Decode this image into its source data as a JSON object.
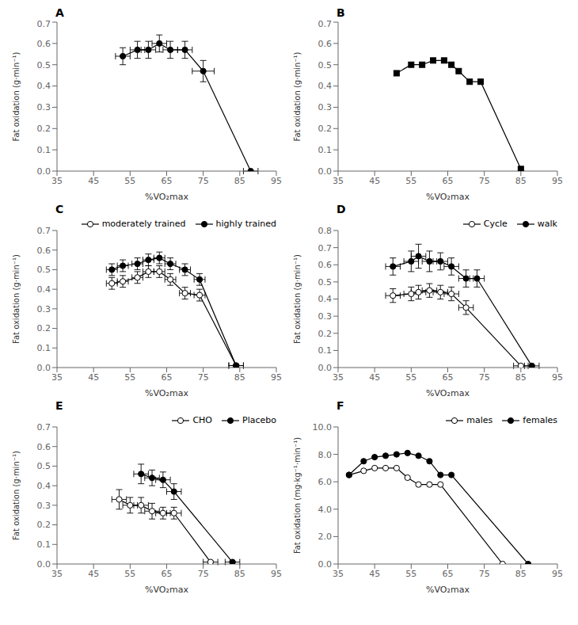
{
  "chart_data": [
    {
      "type": "line",
      "title": "A",
      "xlabel": "%VO₂max",
      "ylabel": "Fat oxidation (g·min⁻¹)",
      "xlim": [
        35,
        95
      ],
      "ylim": [
        0,
        0.7
      ],
      "xticks": [
        35,
        45,
        55,
        65,
        75,
        85,
        95
      ],
      "yticks": [
        {
          "value": 0,
          "label": "0.0"
        },
        0.1,
        0.2,
        0.3,
        0.4,
        0.5,
        0.6,
        0.7
      ],
      "grid": false,
      "series": [
        {
          "x": [
            53,
            57,
            60,
            63,
            66,
            70,
            75,
            88
          ],
          "values": [
            0.54,
            0.57,
            0.57,
            0.6,
            0.57,
            0.57,
            0.47,
            0.0
          ],
          "xerr": [
            2,
            2,
            2,
            2,
            2,
            2,
            3,
            2
          ],
          "yerr": [
            0.04,
            0.04,
            0.04,
            0.04,
            0.04,
            0.04,
            0.05,
            0.0
          ],
          "marker": "circle",
          "color": "#000000"
        }
      ]
    },
    {
      "type": "line",
      "title": "B",
      "xlabel": "%VO₂max",
      "ylabel": "Fat oxidation (g·min⁻¹)",
      "xlim": [
        35,
        95
      ],
      "ylim": [
        0,
        0.7
      ],
      "xticks": [
        35,
        45,
        55,
        65,
        75,
        85,
        95
      ],
      "yticks": [
        {
          "value": 0,
          "label": "0.0"
        },
        0.1,
        0.2,
        0.3,
        0.4,
        0.5,
        0.6,
        0.7
      ],
      "grid": false,
      "series": [
        {
          "x": [
            51,
            55,
            58,
            61,
            64,
            66,
            68,
            71,
            74,
            85
          ],
          "values": [
            0.46,
            0.5,
            0.5,
            0.52,
            0.52,
            0.5,
            0.47,
            0.42,
            0.42,
            0.01
          ],
          "marker": "square",
          "color": "#000000"
        }
      ]
    },
    {
      "type": "line",
      "title": "C",
      "xlabel": "%VO₂max",
      "ylabel": "Fat oxidation (g·min⁻¹)",
      "xlim": [
        35,
        95
      ],
      "ylim": [
        0,
        0.7
      ],
      "xticks": [
        35,
        45,
        55,
        65,
        75,
        85,
        95
      ],
      "yticks": [
        {
          "value": 0,
          "label": "0.0"
        },
        0.1,
        0.2,
        0.3,
        0.4,
        0.5,
        0.6,
        0.7
      ],
      "grid": false,
      "legend": "upper right",
      "series": [
        {
          "name": "moderately trained",
          "x": [
            50,
            53,
            57,
            60,
            63,
            66,
            70,
            74,
            84
          ],
          "values": [
            0.43,
            0.44,
            0.46,
            0.49,
            0.49,
            0.45,
            0.38,
            0.37,
            0.01
          ],
          "xerr": [
            1.5,
            1.5,
            1.5,
            1.5,
            1.5,
            1.5,
            1.5,
            1.5,
            2
          ],
          "yerr": [
            0.03,
            0.03,
            0.03,
            0.03,
            0.03,
            0.03,
            0.03,
            0.03,
            0.005
          ],
          "marker": "open_circle",
          "color": "#000000"
        },
        {
          "name": "highly trained",
          "x": [
            50,
            53,
            57,
            60,
            63,
            66,
            70,
            74,
            84
          ],
          "values": [
            0.5,
            0.52,
            0.53,
            0.55,
            0.56,
            0.53,
            0.5,
            0.45,
            0.01
          ],
          "xerr": [
            1.5,
            1.5,
            1.5,
            1.5,
            1.5,
            1.5,
            1.5,
            1.5,
            2
          ],
          "yerr": [
            0.03,
            0.03,
            0.03,
            0.03,
            0.03,
            0.03,
            0.03,
            0.03,
            0.005
          ],
          "marker": "circle",
          "color": "#000000"
        }
      ]
    },
    {
      "type": "line",
      "title": "D",
      "xlabel": "%VO₂max",
      "ylabel": "Fat oxidation (g·min⁻¹)",
      "xlim": [
        35,
        95
      ],
      "ylim": [
        0,
        0.8
      ],
      "xticks": [
        35,
        45,
        55,
        65,
        75,
        85,
        95
      ],
      "yticks": [
        {
          "value": 0,
          "label": "0.0"
        },
        0.1,
        0.2,
        0.3,
        0.4,
        0.5,
        0.6,
        0.7,
        0.8
      ],
      "grid": false,
      "legend": "upper right",
      "series": [
        {
          "name": "Cycle",
          "x": [
            50,
            55,
            57,
            60,
            63,
            66,
            70,
            85
          ],
          "values": [
            0.42,
            0.43,
            0.44,
            0.45,
            0.44,
            0.43,
            0.35,
            0.01
          ],
          "xerr": [
            2,
            2,
            2,
            2,
            2,
            2,
            2,
            2
          ],
          "yerr": [
            0.04,
            0.04,
            0.04,
            0.04,
            0.04,
            0.04,
            0.04,
            0.005
          ],
          "marker": "open_circle",
          "color": "#000000"
        },
        {
          "name": "walk",
          "x": [
            50,
            55,
            57,
            60,
            63,
            66,
            70,
            73,
            88
          ],
          "values": [
            0.59,
            0.62,
            0.65,
            0.62,
            0.62,
            0.59,
            0.52,
            0.52,
            0.01
          ],
          "xerr": [
            2,
            2,
            2,
            2,
            2,
            2,
            2,
            2,
            2
          ],
          "yerr": [
            0.05,
            0.06,
            0.07,
            0.06,
            0.05,
            0.05,
            0.05,
            0.05,
            0.005
          ],
          "marker": "circle",
          "color": "#000000"
        }
      ]
    },
    {
      "type": "line",
      "title": "E",
      "xlabel": "%VO₂max",
      "ylabel": "Fat oxidation (g·min⁻¹)",
      "xlim": [
        35,
        95
      ],
      "ylim": [
        0,
        0.7
      ],
      "xticks": [
        35,
        45,
        55,
        65,
        75,
        85,
        95
      ],
      "yticks": [
        {
          "value": 0,
          "label": "0.0"
        },
        0.1,
        0.2,
        0.3,
        0.4,
        0.5,
        0.6,
        0.7
      ],
      "grid": false,
      "legend": "upper right",
      "series": [
        {
          "name": "CHO",
          "x": [
            52,
            55,
            58,
            61,
            64,
            67,
            77
          ],
          "values": [
            0.33,
            0.3,
            0.3,
            0.27,
            0.26,
            0.26,
            0.01
          ],
          "xerr": [
            2,
            2,
            2,
            2,
            2,
            2,
            2
          ],
          "yerr": [
            0.05,
            0.04,
            0.04,
            0.04,
            0.03,
            0.03,
            0.005
          ],
          "marker": "open_circle",
          "color": "#000000"
        },
        {
          "name": "Placebo",
          "x": [
            58,
            61,
            64,
            67,
            83
          ],
          "values": [
            0.46,
            0.44,
            0.43,
            0.37,
            0.01
          ],
          "xerr": [
            2,
            2,
            2,
            2,
            2
          ],
          "yerr": [
            0.05,
            0.04,
            0.04,
            0.04,
            0.005
          ],
          "marker": "circle",
          "color": "#000000"
        }
      ]
    },
    {
      "type": "line",
      "title": "F",
      "xlabel": "%VO₂max",
      "ylabel": "Fat oxidation (mg·kg⁻¹·min⁻¹)",
      "xlim": [
        35,
        95
      ],
      "ylim": [
        0,
        10
      ],
      "xticks": [
        35,
        45,
        55,
        65,
        75,
        85,
        95
      ],
      "yticks": [
        {
          "value": 0,
          "label": "0.0"
        },
        {
          "value": 2,
          "label": "2.0"
        },
        {
          "value": 4,
          "label": "4.0"
        },
        {
          "value": 6,
          "label": "6.0"
        },
        {
          "value": 8,
          "label": "8.0"
        },
        {
          "value": 10,
          "label": "10.0"
        }
      ],
      "grid": false,
      "legend": "upper right",
      "series": [
        {
          "name": "males",
          "x": [
            38,
            42,
            45,
            48,
            51,
            54,
            57,
            60,
            63,
            80
          ],
          "values": [
            6.5,
            6.8,
            7.0,
            7.0,
            7.0,
            6.3,
            5.8,
            5.8,
            5.8,
            0.0
          ],
          "marker": "open_circle",
          "color": "#000000"
        },
        {
          "name": "females",
          "x": [
            38,
            42,
            45,
            48,
            51,
            54,
            57,
            60,
            63,
            66,
            87
          ],
          "values": [
            6.5,
            7.5,
            7.8,
            7.9,
            8.0,
            8.1,
            7.9,
            7.5,
            6.5,
            6.5,
            0.0
          ],
          "marker": "circle",
          "color": "#000000"
        }
      ]
    }
  ]
}
